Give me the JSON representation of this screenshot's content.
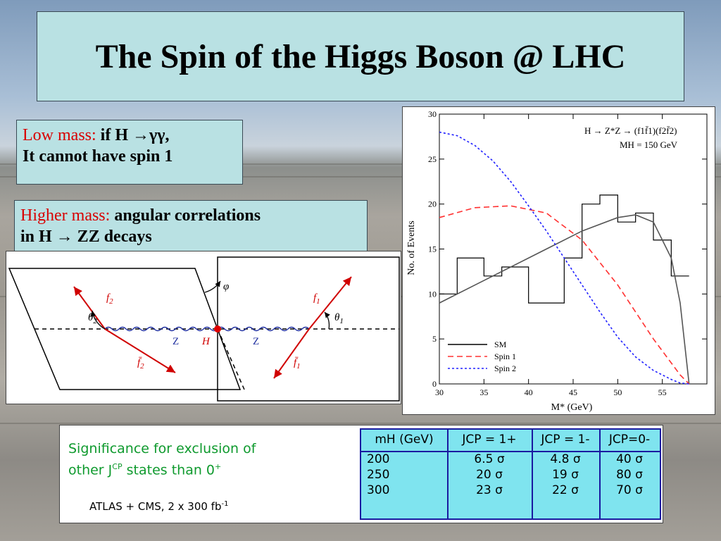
{
  "title": "The Spin of the Higgs Boson @ LHC",
  "low_mass": {
    "lead": "Low mass:",
    "text1": "if H →γγ,",
    "text2": "It cannot have spin 1"
  },
  "higher_mass": {
    "lead": "Higher mass:",
    "text1": "angular correlations",
    "text2": "in H → ZZ decays"
  },
  "diagram": {
    "labels": [
      "f2",
      "f1",
      "θ2",
      "θ1",
      "Z",
      "H",
      "Z",
      "f̄2",
      "f̄1",
      "φ"
    ]
  },
  "chart_data": {
    "type": "line",
    "annotation_line1": "H → Z*Z → (f1f̄1)(f2f̄2)",
    "annotation_line2": "MH = 150 GeV",
    "xlabel": "M* (GeV)",
    "ylabel": "No. of Events",
    "xlim": [
      30,
      60
    ],
    "ylim": [
      0,
      30
    ],
    "x_ticks": [
      30,
      35,
      40,
      45,
      50,
      55
    ],
    "y_ticks": [
      0,
      5,
      10,
      15,
      20,
      25,
      30
    ],
    "legend_position": "bottom-left",
    "series": [
      {
        "name": "SM",
        "style": "histogram",
        "color": "#000000",
        "bins": [
          [
            30,
            32,
            10
          ],
          [
            32,
            35,
            14
          ],
          [
            35,
            37,
            12
          ],
          [
            37,
            40,
            13
          ],
          [
            40,
            44,
            9
          ],
          [
            44,
            46,
            14
          ],
          [
            46,
            48,
            20
          ],
          [
            48,
            50,
            21
          ],
          [
            50,
            52,
            18
          ],
          [
            52,
            54,
            19
          ],
          [
            54,
            56,
            16
          ],
          [
            56,
            58,
            12
          ]
        ]
      },
      {
        "name": "SM",
        "style": "solid",
        "color": "#555555",
        "x": [
          30,
          34,
          38,
          42,
          46,
          50,
          52,
          54,
          56,
          57,
          58
        ],
        "y": [
          9,
          11,
          13,
          15,
          17,
          18.5,
          18.8,
          18,
          14,
          9,
          0
        ]
      },
      {
        "name": "Spin 1",
        "style": "dashed",
        "color": "#ff3030",
        "x": [
          30,
          34,
          38,
          42,
          46,
          50,
          54,
          57,
          58
        ],
        "y": [
          18.5,
          19.6,
          19.8,
          19,
          16,
          11,
          5,
          1,
          0
        ]
      },
      {
        "name": "Spin 2",
        "style": "dotted",
        "color": "#2020ff",
        "x": [
          30,
          32,
          34,
          36,
          38,
          40,
          42,
          44,
          46,
          48,
          50,
          52,
          54,
          56,
          57,
          58
        ],
        "y": [
          28,
          27.6,
          26.5,
          24.8,
          22.5,
          19.8,
          17,
          14,
          11,
          8,
          5.2,
          3,
          1.5,
          0.5,
          0.1,
          0
        ]
      }
    ]
  },
  "significance": {
    "text1": "Significance for exclusion of",
    "text2": "other J",
    "text2_sup": "CP",
    "text2_rest": " states than  0",
    "text2_sup2": "+",
    "footnote": "ATLAS + CMS, 2 x 300 fb",
    "footnote_sup": "-1"
  },
  "table": {
    "headers": [
      "mH  (GeV)",
      "JCP = 1+",
      "JCP = 1-",
      "JCP=0-"
    ],
    "rows": [
      [
        "200",
        "6.5 σ",
        "4.8 σ",
        "40 σ"
      ],
      [
        "250",
        "20 σ",
        "19 σ",
        "80 σ"
      ],
      [
        "300",
        "23 σ",
        "22 σ",
        "70 σ"
      ]
    ]
  },
  "colors": {
    "box_bg": "#b9e1e3",
    "red": "#d80000",
    "table_bg": "#7fe4ef",
    "green_text": "#0f9a2e"
  }
}
